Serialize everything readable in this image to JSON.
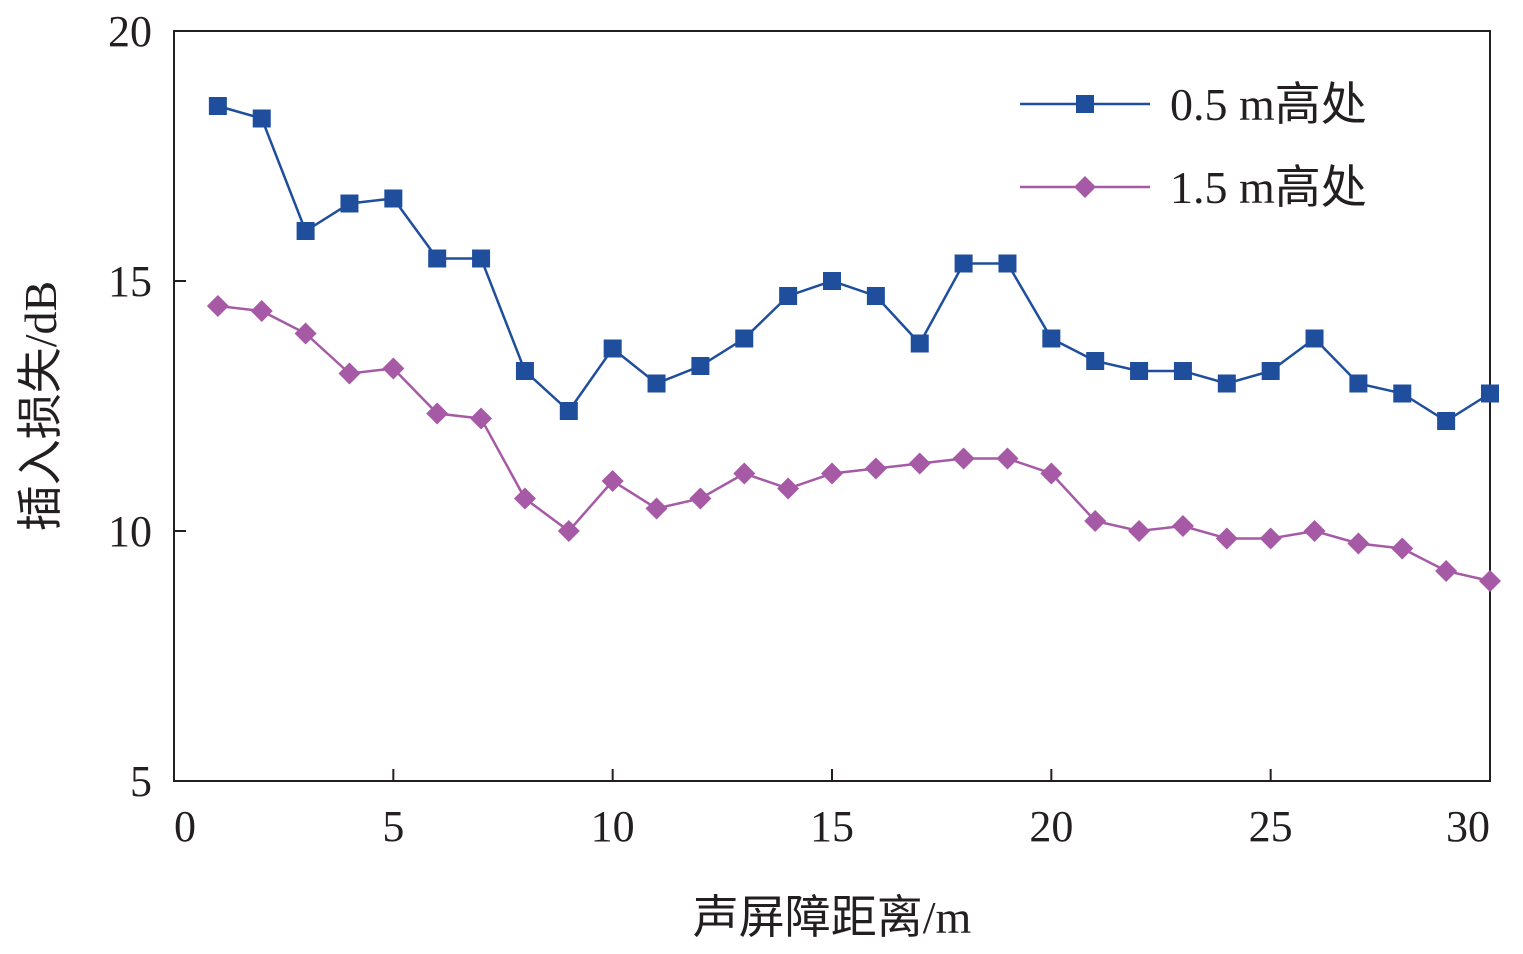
{
  "chart_data": {
    "type": "line",
    "xlabel": "声屏障距离/m",
    "ylabel": "插入损失/dB",
    "xlim": [
      0,
      30
    ],
    "ylim": [
      5,
      20
    ],
    "xticks": [
      0,
      5,
      10,
      15,
      20,
      25,
      30
    ],
    "yticks": [
      5,
      10,
      15,
      20
    ],
    "grid": false,
    "legend_position": "top-right",
    "x": [
      1,
      2,
      3,
      4,
      5,
      6,
      7,
      8,
      9,
      10,
      11,
      12,
      13,
      14,
      15,
      16,
      17,
      18,
      19,
      20,
      21,
      22,
      23,
      24,
      25,
      26,
      27,
      28,
      29,
      30
    ],
    "series": [
      {
        "name": "0.5 m高处",
        "color": "#1f4e9c",
        "marker": "square",
        "values": [
          18.5,
          18.25,
          16.0,
          16.55,
          16.65,
          15.45,
          15.45,
          13.2,
          12.4,
          13.65,
          12.95,
          13.3,
          13.85,
          14.7,
          15.0,
          14.7,
          13.75,
          15.35,
          15.35,
          13.85,
          13.4,
          13.2,
          13.2,
          12.95,
          13.2,
          13.85,
          12.95,
          12.75,
          12.2,
          12.75
        ]
      },
      {
        "name": "1.5 m高处",
        "color": "#a65aa6",
        "marker": "diamond",
        "values": [
          14.5,
          14.4,
          13.95,
          13.15,
          13.25,
          12.35,
          12.25,
          10.65,
          10.0,
          11.0,
          10.45,
          10.65,
          11.15,
          10.85,
          11.15,
          11.25,
          11.35,
          11.45,
          11.45,
          11.15,
          10.2,
          10.0,
          10.1,
          9.85,
          9.85,
          10.0,
          9.75,
          9.65,
          9.2,
          9.0
        ]
      }
    ]
  }
}
